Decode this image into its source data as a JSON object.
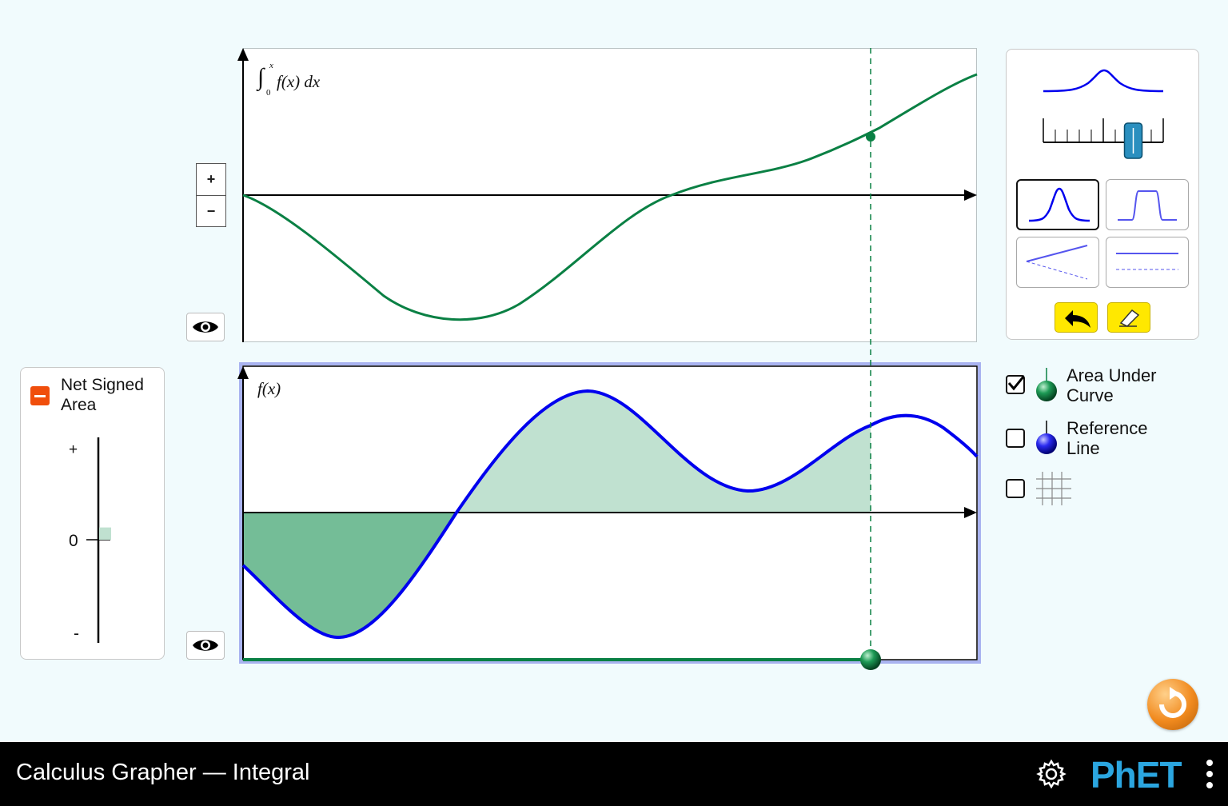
{
  "app": {
    "title": "Calculus Grapher — Integral",
    "brand": "PhET"
  },
  "graphs": {
    "integral": {
      "label_fn": "f(x) dx",
      "label_lower": "0",
      "label_upper": "x",
      "curve_color": "#0a8044"
    },
    "f": {
      "label": "f(x)",
      "curve_color": "#0000ee",
      "area_color": "#7bbf98"
    }
  },
  "zoom": {
    "plus": "+",
    "minus": "−"
  },
  "net_signed_area": {
    "title_line1": "Net Signed",
    "title_line2": "Area",
    "tick_plus": "+",
    "tick_zero": "0",
    "tick_minus": "-",
    "value": 0.12
  },
  "shape_panel": {
    "shapes": [
      "peak",
      "plateau",
      "tilt",
      "shift"
    ],
    "selected": "peak",
    "width_slider_value": 0.75,
    "undo_icon": "undo-arrow-icon",
    "erase_icon": "eraser-icon"
  },
  "checkboxes": [
    {
      "label_line1": "Area Under",
      "label_line2": "Curve",
      "checked": true,
      "icon": "green-sphere-icon"
    },
    {
      "label_line1": "Reference",
      "label_line2": "Line",
      "checked": false,
      "icon": "blue-sphere-icon"
    },
    {
      "label_line1": "",
      "label_line2": "",
      "checked": false,
      "icon": "grid-icon"
    }
  ],
  "colors": {
    "background": "#f1fbfd",
    "accent_orange": "#f18a1e",
    "phet_blue": "#2ba6e0",
    "phet_yellow": "#fee108"
  }
}
